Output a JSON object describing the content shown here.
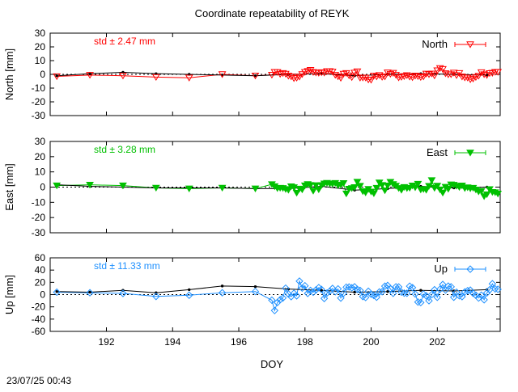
{
  "page": {
    "title": "Coordinate repeatability of REYK",
    "xlabel": "DOY",
    "timestamp": "23/07/25 00:43"
  },
  "colors": {
    "north": "#ff0000",
    "east": "#00c000",
    "up": "#1e90ff",
    "reference": "#000000",
    "frame": "#000000"
  },
  "chart_data": [
    {
      "type": "line",
      "panel": "north",
      "ylabel": "North [mm]",
      "legend": "North",
      "legend_position": "top-right",
      "std_label": "std ± 2.47 mm",
      "marker": "triangle-down-open",
      "xlim": [
        190.3,
        203.9
      ],
      "ylim": [
        -30,
        30
      ],
      "yticks": [
        "-30",
        "-20",
        "-10",
        "0",
        "10",
        "20",
        "30"
      ],
      "grid": false,
      "zero_line": true,
      "reference_series": {
        "x": [
          190.5,
          191.5,
          192.5,
          193.5,
          194.5,
          195.5,
          196.5,
          197.5,
          198.5,
          199.5,
          200.5,
          201.5,
          202.5,
          203.5
        ],
        "y": [
          -1,
          0.5,
          1.5,
          0.5,
          0,
          -0.5,
          -1,
          0,
          0.5,
          -1,
          0,
          0.5,
          0,
          -0.5
        ]
      },
      "daily": {
        "x": [
          190.5,
          191.5,
          192.5,
          193.5,
          194.5,
          195.5,
          196.5
        ],
        "y": [
          -1.5,
          -0.5,
          -1,
          -2,
          -2.5,
          0,
          -1
        ]
      },
      "subdaily": {
        "x_start": 197.0,
        "x_end": 203.9,
        "step": 0.0833,
        "mean": 0,
        "std": 2.3,
        "seed": 11
      }
    },
    {
      "type": "line",
      "panel": "east",
      "ylabel": "East [mm]",
      "legend": "East",
      "legend_position": "top-right",
      "std_label": "std ± 3.28 mm",
      "marker": "triangle-down-filled",
      "xlim": [
        190.3,
        203.9
      ],
      "ylim": [
        -30,
        30
      ],
      "yticks": [
        "-30",
        "-20",
        "-10",
        "0",
        "10",
        "20",
        "30"
      ],
      "grid": false,
      "zero_line": true,
      "reference_series": {
        "x": [
          190.5,
          191.5,
          192.5,
          193.5,
          194.5,
          195.5,
          196.5,
          197.5,
          198.5,
          199.5,
          200.5,
          201.5,
          202.5,
          203.5
        ],
        "y": [
          1.5,
          0.5,
          0,
          -0.5,
          -0.5,
          -0.5,
          -1,
          -1,
          0.5,
          -2,
          -1,
          0.5,
          -0.5,
          0
        ]
      },
      "daily": {
        "x": [
          190.5,
          191.5,
          192.5,
          193.5,
          194.5,
          195.5,
          196.5
        ],
        "y": [
          1,
          1.5,
          1,
          -0.5,
          -1,
          -0.5,
          -1
        ]
      },
      "subdaily": {
        "x_start": 197.0,
        "x_end": 203.9,
        "step": 0.0833,
        "mean": -1,
        "std": 3.2,
        "seed": 29
      }
    },
    {
      "type": "line",
      "panel": "up",
      "ylabel": "Up [mm]",
      "legend": "Up",
      "legend_position": "top-right",
      "std_label": "std ± 11.33 mm",
      "marker": "diamond-open",
      "xlim": [
        190.3,
        203.9
      ],
      "ylim": [
        -60,
        60
      ],
      "yticks": [
        "-60",
        "-40",
        "-20",
        "0",
        "20",
        "40",
        "60"
      ],
      "grid": false,
      "zero_line": true,
      "reference_series": {
        "x": [
          190.5,
          191.5,
          192.5,
          193.5,
          194.5,
          195.5,
          196.5,
          197.5,
          198.5,
          199.5,
          200.5,
          201.5,
          202.5,
          203.5
        ],
        "y": [
          5,
          4,
          7,
          3,
          8,
          14,
          13,
          9,
          7,
          4,
          5,
          7,
          6,
          8
        ]
      },
      "daily": {
        "x": [
          190.5,
          191.5,
          192.5,
          193.5,
          194.5,
          195.5,
          196.5
        ],
        "y": [
          4,
          3,
          2,
          -3,
          -1,
          3,
          5
        ]
      },
      "subdaily": {
        "x_start": 197.0,
        "x_end": 203.9,
        "step": 0.0833,
        "mean": 2,
        "std": 11,
        "seed": 47
      }
    }
  ],
  "xaxis": {
    "ticks": [
      192,
      194,
      196,
      198,
      200,
      202
    ],
    "tick_labels": [
      "192",
      "194",
      "196",
      "198",
      "200",
      "202"
    ]
  }
}
